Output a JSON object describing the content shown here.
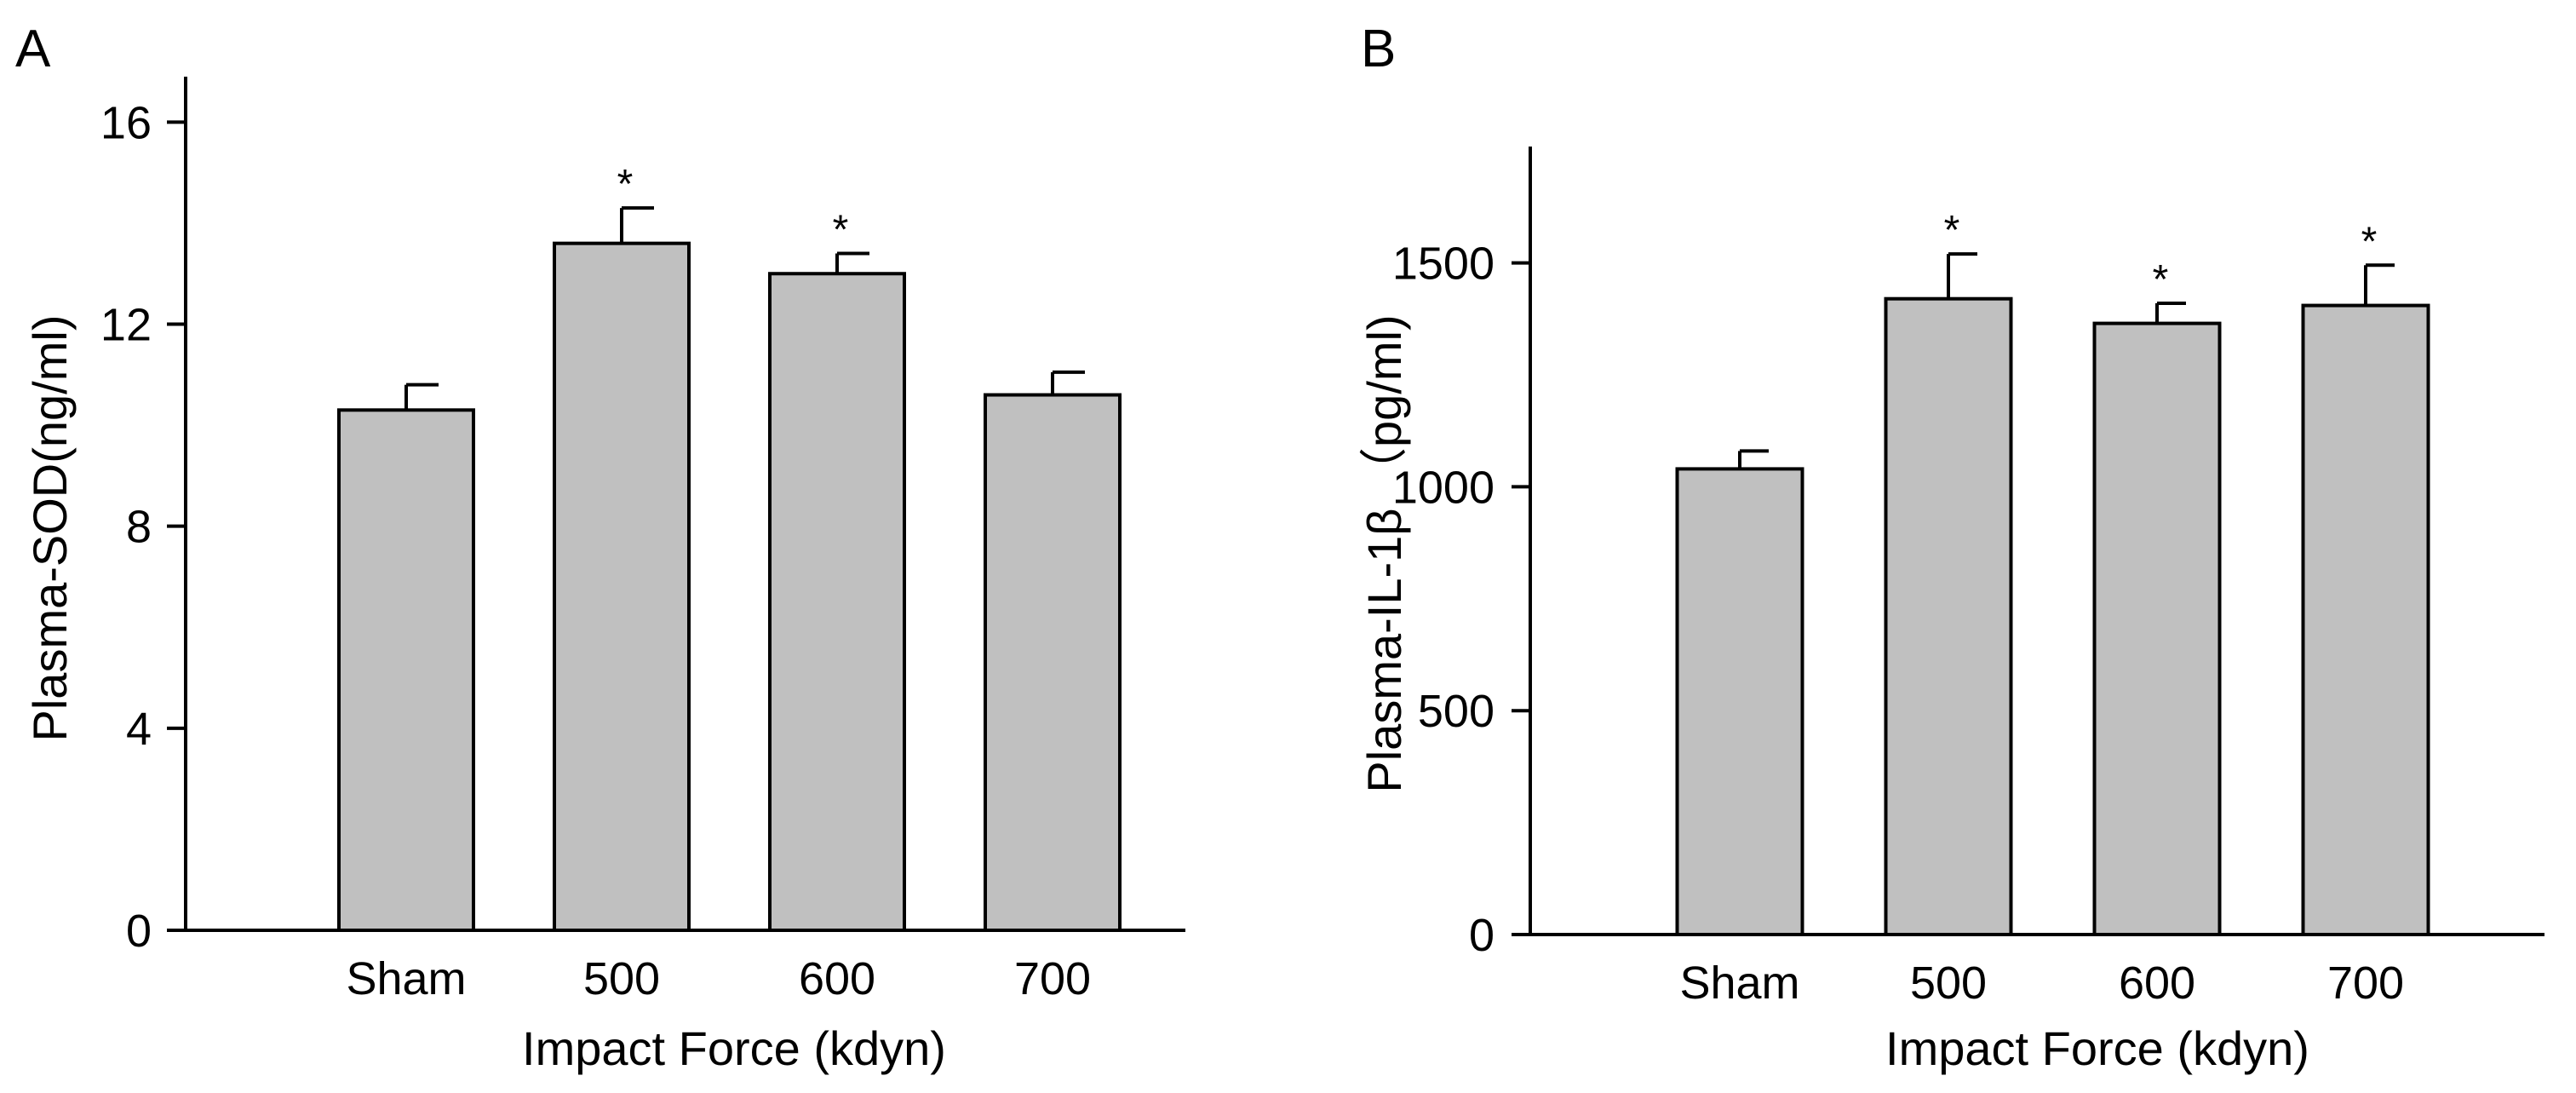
{
  "colors": {
    "bar_fill": "#c0c0c0",
    "stroke": "#000000",
    "background": "#ffffff"
  },
  "chart_data": [
    {
      "type": "bar",
      "panel": "A",
      "categories": [
        "Sham",
        "500",
        "600",
        "700"
      ],
      "values": [
        10.3,
        13.6,
        13.0,
        10.6
      ],
      "errors": [
        0.5,
        0.7,
        0.4,
        0.45
      ],
      "significance": [
        "",
        "*",
        "*",
        ""
      ],
      "xlabel": "Impact Force (kdyn)",
      "ylabel": "Plasma-SOD(ng/ml)",
      "ylim": [
        0,
        16.9
      ],
      "yticks": [
        0,
        4,
        8,
        12,
        16
      ],
      "grid": false,
      "legend": "none"
    },
    {
      "type": "bar",
      "panel": "B",
      "categories": [
        "Sham",
        "500",
        "600",
        "700"
      ],
      "values": [
        1040,
        1420,
        1365,
        1405
      ],
      "errors": [
        40,
        100,
        45,
        90
      ],
      "significance": [
        "",
        "*",
        "*",
        "*"
      ],
      "xlabel": "Impact Force (kdyn)",
      "ylabel": "Plasma-IL-1β （pg/ml)",
      "ylim": [
        0,
        1760
      ],
      "yticks": [
        0,
        500,
        1000,
        1500
      ],
      "grid": false,
      "legend": "none"
    }
  ]
}
